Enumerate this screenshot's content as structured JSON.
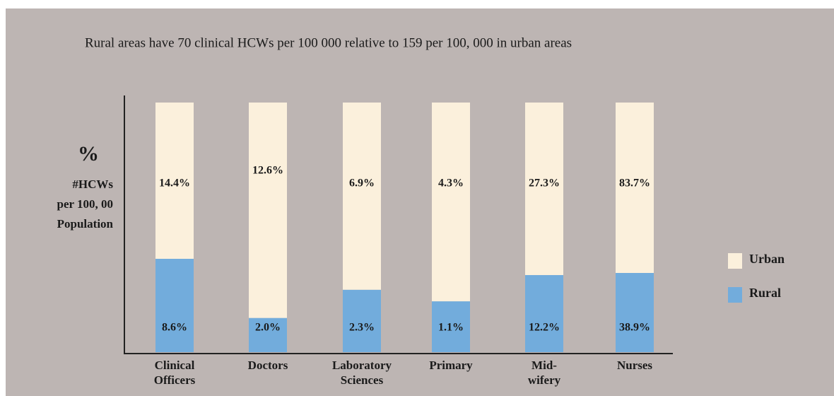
{
  "chart_data": {
    "type": "bar",
    "stacked": "percent",
    "title": "Rural areas have 70 clinical HCWs per 100 000 relative to 159 per 100, 000 in urban areas",
    "ylabel": "%",
    "ylabel_lines": [
      "#HCWs",
      "per 100, 00",
      "Population"
    ],
    "categories": [
      "Clinical Officers",
      "Doctors",
      "Laboratory Sciences",
      "Primary",
      "Mid-wifery",
      "Nurses"
    ],
    "series": [
      {
        "name": "Rural",
        "color": "#72acdc",
        "values": [
          8.6,
          2.0,
          2.3,
          1.1,
          12.2,
          38.9
        ],
        "value_labels": [
          "8.6%",
          "2.0%",
          "2.3%",
          "1.1%",
          "12.2%",
          "38.9%"
        ]
      },
      {
        "name": "Urban",
        "color": "#fbf0dc",
        "values": [
          14.4,
          12.6,
          6.9,
          4.3,
          27.3,
          83.7
        ],
        "value_labels": [
          "14.4%",
          "12.6%",
          "6.9%",
          "4.3%",
          "27.3%",
          "83.7%"
        ]
      }
    ],
    "legend": "right"
  }
}
